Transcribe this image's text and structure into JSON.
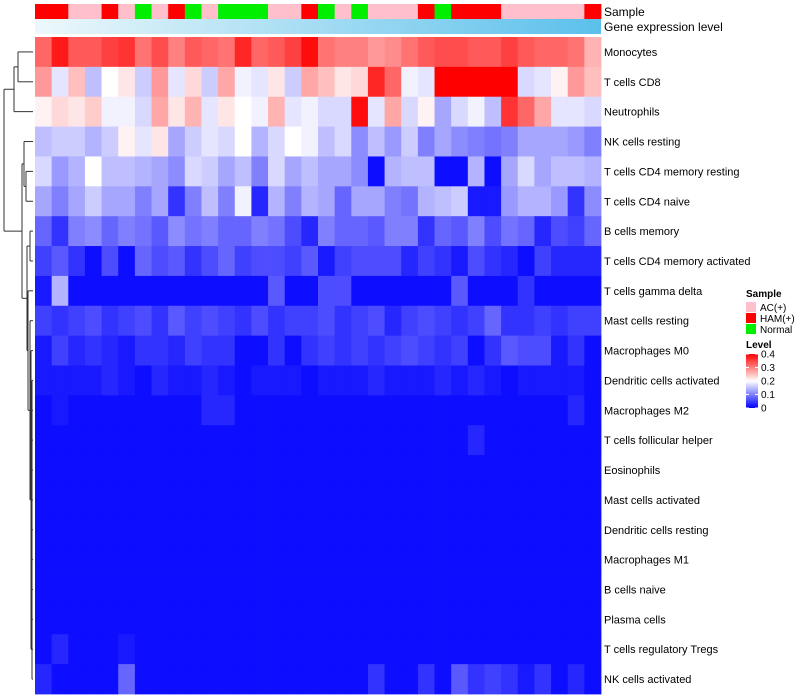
{
  "chart_data": {
    "type": "heatmap",
    "title": "",
    "annotation_tracks": [
      {
        "name": "Sample",
        "type": "categorical"
      },
      {
        "name": "Gene expression level",
        "type": "gradient",
        "low_color": "#edf8fb",
        "high_color": "#5bc0eb"
      }
    ],
    "sample_groups": [
      "HAM(+)",
      "HAM(+)",
      "AC(+)",
      "AC(+)",
      "HAM(+)",
      "AC(+)",
      "Normal",
      "AC(+)",
      "HAM(+)",
      "Normal",
      "AC(+)",
      "Normal",
      "Normal",
      "Normal",
      "AC(+)",
      "AC(+)",
      "HAM(+)",
      "Normal",
      "AC(+)",
      "Normal",
      "AC(+)",
      "AC(+)",
      "AC(+)",
      "HAM(+)",
      "Normal",
      "HAM(+)",
      "HAM(+)",
      "HAM(+)",
      "AC(+)",
      "AC(+)",
      "AC(+)",
      "AC(+)",
      "AC(+)",
      "HAM(+)"
    ],
    "legend": {
      "sample_title": "Sample",
      "sample_entries": [
        {
          "label": "AC(+)",
          "color": "#ffc0cb"
        },
        {
          "label": "HAM(+)",
          "color": "#ff0000"
        },
        {
          "label": "Normal",
          "color": "#00ee00"
        }
      ],
      "level_title": "Level",
      "level_ticks": [
        {
          "value": 0.4,
          "label": "0.4"
        },
        {
          "value": 0.3,
          "label": "0.3"
        },
        {
          "value": 0.2,
          "label": "0.2"
        },
        {
          "value": 0.1,
          "label": "0.1"
        },
        {
          "value": 0,
          "label": "0"
        }
      ]
    },
    "color_scale": {
      "min": 0,
      "mid": 0.2,
      "max": 0.4,
      "low": "#0000ff",
      "mid_color": "#ffffff",
      "high": "#ff0000"
    },
    "rows": [
      "Monocytes",
      "T cells CD8",
      "Neutrophils",
      "NK cells resting",
      "T cells CD4 memory resting",
      "T cells CD4 naive",
      "B cells memory",
      "T cells CD4 memory activated",
      "T cells gamma delta",
      "Mast cells resting",
      "Macrophages M0",
      "Dendritic cells activated",
      "Macrophages M2",
      "T cells follicular helper",
      "Eosinophils",
      "Mast cells activated",
      "Dendritic cells resting",
      "Macrophages M1",
      "B cells naive",
      "Plasma cells",
      "T cells regulatory  Tregs",
      "NK cells activated"
    ],
    "values": [
      [
        0.32,
        0.38,
        0.33,
        0.33,
        0.35,
        0.36,
        0.31,
        0.34,
        0.3,
        0.33,
        0.32,
        0.31,
        0.37,
        0.32,
        0.33,
        0.35,
        0.39,
        0.31,
        0.3,
        0.3,
        0.28,
        0.29,
        0.31,
        0.33,
        0.34,
        0.34,
        0.33,
        0.33,
        0.35,
        0.33,
        0.32,
        0.32,
        0.31,
        0.26
      ],
      [
        0.28,
        0.18,
        0.25,
        0.15,
        0.2,
        0.22,
        0.16,
        0.28,
        0.18,
        0.23,
        0.16,
        0.27,
        0.19,
        0.18,
        0.22,
        0.16,
        0.27,
        0.25,
        0.22,
        0.23,
        0.37,
        0.32,
        0.19,
        0.18,
        0.4,
        0.4,
        0.4,
        0.4,
        0.4,
        0.17,
        0.18,
        0.21,
        0.28,
        0.25
      ],
      [
        0.21,
        0.23,
        0.22,
        0.24,
        0.19,
        0.19,
        0.17,
        0.27,
        0.22,
        0.26,
        0.18,
        0.22,
        0.2,
        0.19,
        0.26,
        0.18,
        0.19,
        0.17,
        0.17,
        0.39,
        0.18,
        0.27,
        0.17,
        0.21,
        0.13,
        0.17,
        0.19,
        0.15,
        0.36,
        0.32,
        0.27,
        0.18,
        0.18,
        0.17
      ],
      [
        0.15,
        0.16,
        0.16,
        0.14,
        0.16,
        0.21,
        0.18,
        0.22,
        0.13,
        0.16,
        0.18,
        0.17,
        0.2,
        0.14,
        0.17,
        0.2,
        0.19,
        0.15,
        0.17,
        0.11,
        0.15,
        0.12,
        0.16,
        0.1,
        0.13,
        0.11,
        0.1,
        0.09,
        0.1,
        0.13,
        0.13,
        0.13,
        0.12,
        0.1
      ],
      [
        0.17,
        0.12,
        0.14,
        0.2,
        0.15,
        0.15,
        0.14,
        0.13,
        0.11,
        0.17,
        0.16,
        0.13,
        0.15,
        0.1,
        0.17,
        0.13,
        0.15,
        0.13,
        0.13,
        0.11,
        0.01,
        0.14,
        0.15,
        0.15,
        0.01,
        0.01,
        0.14,
        0.01,
        0.13,
        0.17,
        0.13,
        0.15,
        0.15,
        0.14
      ],
      [
        0.13,
        0.1,
        0.13,
        0.16,
        0.13,
        0.13,
        0.1,
        0.13,
        0.04,
        0.1,
        0.15,
        0.1,
        0.19,
        0.03,
        0.14,
        0.1,
        0.14,
        0.13,
        0.08,
        0.13,
        0.13,
        0.1,
        0.09,
        0.14,
        0.15,
        0.16,
        0.02,
        0.02,
        0.12,
        0.14,
        0.14,
        0.12,
        0.04,
        0.11
      ],
      [
        0.08,
        0.04,
        0.1,
        0.11,
        0.08,
        0.1,
        0.09,
        0.07,
        0.11,
        0.09,
        0.1,
        0.08,
        0.08,
        0.1,
        0.09,
        0.06,
        0.03,
        0.1,
        0.08,
        0.08,
        0.07,
        0.1,
        0.1,
        0.04,
        0.08,
        0.07,
        0.1,
        0.06,
        0.09,
        0.08,
        0.03,
        0.06,
        0.05,
        0.08
      ],
      [
        0.05,
        0.07,
        0.04,
        0.01,
        0.06,
        0.01,
        0.08,
        0.06,
        0.07,
        0.04,
        0.06,
        0.08,
        0.05,
        0.06,
        0.06,
        0.05,
        0.07,
        0.02,
        0.05,
        0.06,
        0.06,
        0.06,
        0.03,
        0.05,
        0.04,
        0.02,
        0.06,
        0.04,
        0.03,
        0.01,
        0.05,
        0.03,
        0.03,
        0.03
      ],
      [
        0.02,
        0.14,
        0.01,
        0.01,
        0.01,
        0.01,
        0.01,
        0.01,
        0.01,
        0.01,
        0.01,
        0.01,
        0.01,
        0.01,
        0.07,
        0.01,
        0.01,
        0.06,
        0.06,
        0.01,
        0.01,
        0.01,
        0.01,
        0.01,
        0.01,
        0.07,
        0.01,
        0.01,
        0.01,
        0.04,
        0.01,
        0.01,
        0.01,
        0.01
      ],
      [
        0.05,
        0.04,
        0.05,
        0.06,
        0.04,
        0.05,
        0.06,
        0.04,
        0.07,
        0.05,
        0.06,
        0.05,
        0.04,
        0.06,
        0.04,
        0.05,
        0.05,
        0.06,
        0.04,
        0.05,
        0.06,
        0.03,
        0.05,
        0.06,
        0.05,
        0.04,
        0.05,
        0.08,
        0.04,
        0.04,
        0.05,
        0.04,
        0.05,
        0.05
      ],
      [
        0.02,
        0.05,
        0.03,
        0.04,
        0.03,
        0.02,
        0.04,
        0.04,
        0.03,
        0.05,
        0.04,
        0.04,
        0.01,
        0.01,
        0.04,
        0.01,
        0.04,
        0.05,
        0.04,
        0.05,
        0.04,
        0.05,
        0.06,
        0.05,
        0.04,
        0.05,
        0.01,
        0.04,
        0.07,
        0.06,
        0.06,
        0.02,
        0.04,
        0.01
      ],
      [
        0.02,
        0.02,
        0.02,
        0.02,
        0.03,
        0.02,
        0.01,
        0.03,
        0.02,
        0.02,
        0.03,
        0.02,
        0.01,
        0.02,
        0.02,
        0.02,
        0.01,
        0.02,
        0.02,
        0.02,
        0.03,
        0.02,
        0.02,
        0.02,
        0.03,
        0.02,
        0.03,
        0.02,
        0.01,
        0.02,
        0.02,
        0.02,
        0.02,
        0.01
      ],
      [
        0.01,
        0.02,
        0.01,
        0.01,
        0.01,
        0.01,
        0.01,
        0.01,
        0.01,
        0.01,
        0.03,
        0.03,
        0.01,
        0.01,
        0.01,
        0.01,
        0.01,
        0.01,
        0.01,
        0.01,
        0.01,
        0.01,
        0.01,
        0.01,
        0.01,
        0.01,
        0.01,
        0.01,
        0.01,
        0.01,
        0.01,
        0.01,
        0.03,
        0.01
      ],
      [
        0.01,
        0.01,
        0.01,
        0.01,
        0.01,
        0.01,
        0.01,
        0.01,
        0.01,
        0.01,
        0.01,
        0.01,
        0.01,
        0.01,
        0.01,
        0.01,
        0.01,
        0.01,
        0.01,
        0.01,
        0.01,
        0.01,
        0.01,
        0.01,
        0.01,
        0.01,
        0.03,
        0.01,
        0.01,
        0.01,
        0.01,
        0.01,
        0.01,
        0.01
      ],
      [
        0.01,
        0.01,
        0.01,
        0.01,
        0.01,
        0.01,
        0.01,
        0.01,
        0.01,
        0.01,
        0.01,
        0.01,
        0.01,
        0.01,
        0.01,
        0.01,
        0.01,
        0.01,
        0.01,
        0.01,
        0.01,
        0.01,
        0.01,
        0.01,
        0.01,
        0.01,
        0.01,
        0.01,
        0.01,
        0.01,
        0.01,
        0.01,
        0.01,
        0.01
      ],
      [
        0.01,
        0.01,
        0.01,
        0.01,
        0.01,
        0.01,
        0.01,
        0.01,
        0.01,
        0.01,
        0.01,
        0.01,
        0.01,
        0.01,
        0.01,
        0.01,
        0.01,
        0.01,
        0.01,
        0.01,
        0.01,
        0.01,
        0.01,
        0.01,
        0.01,
        0.01,
        0.01,
        0.01,
        0.01,
        0.01,
        0.01,
        0.01,
        0.01,
        0.01
      ],
      [
        0.01,
        0.01,
        0.01,
        0.01,
        0.01,
        0.01,
        0.01,
        0.01,
        0.01,
        0.01,
        0.01,
        0.01,
        0.01,
        0.01,
        0.01,
        0.01,
        0.01,
        0.01,
        0.01,
        0.01,
        0.01,
        0.01,
        0.01,
        0.01,
        0.01,
        0.01,
        0.01,
        0.01,
        0.01,
        0.01,
        0.01,
        0.01,
        0.01,
        0.01
      ],
      [
        0.01,
        0.01,
        0.01,
        0.01,
        0.01,
        0.01,
        0.01,
        0.01,
        0.01,
        0.01,
        0.01,
        0.01,
        0.01,
        0.01,
        0.01,
        0.01,
        0.01,
        0.01,
        0.01,
        0.01,
        0.01,
        0.01,
        0.01,
        0.01,
        0.01,
        0.01,
        0.01,
        0.01,
        0.01,
        0.01,
        0.01,
        0.01,
        0.01,
        0.01
      ],
      [
        0.01,
        0.01,
        0.01,
        0.01,
        0.01,
        0.01,
        0.01,
        0.01,
        0.01,
        0.01,
        0.01,
        0.01,
        0.01,
        0.01,
        0.01,
        0.01,
        0.01,
        0.01,
        0.01,
        0.01,
        0.01,
        0.01,
        0.01,
        0.01,
        0.01,
        0.01,
        0.01,
        0.01,
        0.01,
        0.01,
        0.01,
        0.01,
        0.01,
        0.01
      ],
      [
        0.01,
        0.01,
        0.01,
        0.01,
        0.01,
        0.01,
        0.01,
        0.01,
        0.01,
        0.01,
        0.01,
        0.01,
        0.01,
        0.01,
        0.01,
        0.01,
        0.01,
        0.01,
        0.01,
        0.01,
        0.01,
        0.01,
        0.01,
        0.01,
        0.01,
        0.01,
        0.01,
        0.01,
        0.01,
        0.01,
        0.01,
        0.01,
        0.01,
        0.01
      ],
      [
        0.01,
        0.03,
        0.01,
        0.01,
        0.01,
        0.02,
        0.01,
        0.01,
        0.01,
        0.01,
        0.01,
        0.01,
        0.01,
        0.01,
        0.01,
        0.01,
        0.01,
        0.01,
        0.01,
        0.01,
        0.01,
        0.01,
        0.01,
        0.01,
        0.01,
        0.01,
        0.01,
        0.01,
        0.01,
        0.01,
        0.01,
        0.01,
        0.01,
        0.01
      ],
      [
        0.03,
        0.01,
        0.01,
        0.01,
        0.01,
        0.08,
        0.01,
        0.01,
        0.01,
        0.01,
        0.01,
        0.01,
        0.01,
        0.01,
        0.01,
        0.01,
        0.01,
        0.01,
        0.01,
        0.01,
        0.04,
        0.01,
        0.01,
        0.04,
        0.01,
        0.07,
        0.04,
        0.05,
        0.04,
        0.02,
        0.04,
        0.01,
        0.03,
        0.01
      ]
    ]
  }
}
